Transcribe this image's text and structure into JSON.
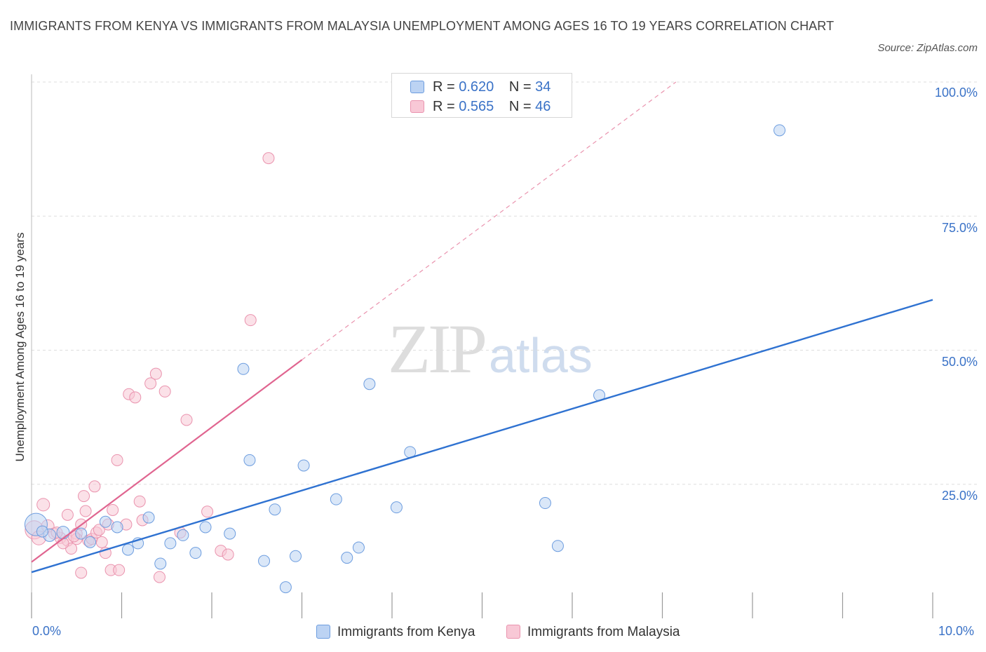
{
  "header": {
    "title": "IMMIGRANTS FROM KENYA VS IMMIGRANTS FROM MALAYSIA UNEMPLOYMENT AMONG AGES 16 TO 19 YEARS CORRELATION CHART",
    "source": "Source: ZipAtlas.com"
  },
  "watermark": {
    "zip": "ZIP",
    "atlas": "atlas"
  },
  "stats": {
    "kenya": {
      "r_label": "R =",
      "r": "0.620",
      "n_label": "N =",
      "n": "34"
    },
    "malaysia": {
      "r_label": "R =",
      "r": "0.565",
      "n_label": "N =",
      "n": "46"
    }
  },
  "colors": {
    "kenya_fill": "#bcd3f3",
    "kenya_stroke": "#6d9ddf",
    "kenya_line": "#2f72d1",
    "malaysia_fill": "#f8c8d6",
    "malaysia_stroke": "#ea93ae",
    "malaysia_line": "#e06590",
    "grid": "#dddddd",
    "tick_text": "#3a72c7"
  },
  "chart_data": {
    "type": "scatter",
    "title": "IMMIGRANTS FROM KENYA VS IMMIGRANTS FROM MALAYSIA UNEMPLOYMENT AMONG AGES 16 TO 19 YEARS CORRELATION CHART",
    "xlabel": "",
    "ylabel": "Unemployment Among Ages 16 to 19 years",
    "xlim": [
      0,
      10
    ],
    "ylim": [
      0,
      100
    ],
    "x_tick_labels": [
      "0.0%",
      "10.0%"
    ],
    "y_ticks": [
      25,
      50,
      75,
      100
    ],
    "y_tick_labels": [
      "25.0%",
      "50.0%",
      "75.0%",
      "100.0%"
    ],
    "grid": true,
    "legend_position": "bottom-center",
    "series": [
      {
        "name": "Immigrants from Kenya",
        "color": "#6d9ddf",
        "trend": {
          "x": [
            0,
            10
          ],
          "y": [
            8.6,
            59.4
          ],
          "style": "solid"
        },
        "points": [
          {
            "x": 0.05,
            "y": 17.5,
            "s": 16
          },
          {
            "x": 0.2,
            "y": 15.5,
            "s": 9
          },
          {
            "x": 0.35,
            "y": 16.0,
            "s": 9
          },
          {
            "x": 0.55,
            "y": 15.8,
            "s": 8
          },
          {
            "x": 0.65,
            "y": 14.2,
            "s": 8
          },
          {
            "x": 0.82,
            "y": 18.0,
            "s": 8
          },
          {
            "x": 0.95,
            "y": 17.0,
            "s": 8
          },
          {
            "x": 1.07,
            "y": 12.8,
            "s": 8
          },
          {
            "x": 1.18,
            "y": 14.0,
            "s": 8
          },
          {
            "x": 1.3,
            "y": 18.8,
            "s": 8
          },
          {
            "x": 1.43,
            "y": 10.2,
            "s": 8
          },
          {
            "x": 1.54,
            "y": 14.0,
            "s": 8
          },
          {
            "x": 1.68,
            "y": 15.5,
            "s": 8
          },
          {
            "x": 1.82,
            "y": 12.2,
            "s": 8
          },
          {
            "x": 1.93,
            "y": 17.0,
            "s": 8
          },
          {
            "x": 2.2,
            "y": 15.8,
            "s": 8
          },
          {
            "x": 2.35,
            "y": 46.5,
            "s": 8
          },
          {
            "x": 2.42,
            "y": 29.5,
            "s": 8
          },
          {
            "x": 2.58,
            "y": 10.7,
            "s": 8
          },
          {
            "x": 2.7,
            "y": 20.3,
            "s": 8
          },
          {
            "x": 2.82,
            "y": 5.8,
            "s": 8
          },
          {
            "x": 2.93,
            "y": 11.6,
            "s": 8
          },
          {
            "x": 3.02,
            "y": 28.5,
            "s": 8
          },
          {
            "x": 3.38,
            "y": 22.2,
            "s": 8
          },
          {
            "x": 3.5,
            "y": 11.3,
            "s": 8
          },
          {
            "x": 3.63,
            "y": 13.2,
            "s": 8
          },
          {
            "x": 3.75,
            "y": 43.7,
            "s": 8
          },
          {
            "x": 4.05,
            "y": 20.7,
            "s": 8
          },
          {
            "x": 4.2,
            "y": 31.0,
            "s": 8
          },
          {
            "x": 5.7,
            "y": 21.5,
            "s": 8
          },
          {
            "x": 5.84,
            "y": 13.5,
            "s": 8
          },
          {
            "x": 6.3,
            "y": 41.6,
            "s": 8
          },
          {
            "x": 8.3,
            "y": 91.0,
            "s": 8
          },
          {
            "x": 0.12,
            "y": 16.2,
            "s": 8
          }
        ]
      },
      {
        "name": "Immigrants from Malaysia",
        "color": "#ea93ae",
        "trend": {
          "x": [
            0,
            3.0
          ],
          "y": [
            10.5,
            48.2
          ],
          "style": "solid",
          "extension": {
            "x": [
              3.0,
              7.15
            ],
            "y": [
              48.2,
              100
            ],
            "style": "dashed"
          }
        },
        "points": [
          {
            "x": 0.03,
            "y": 16.5,
            "s": 13
          },
          {
            "x": 0.08,
            "y": 15.0,
            "s": 10
          },
          {
            "x": 0.13,
            "y": 21.2,
            "s": 9
          },
          {
            "x": 0.18,
            "y": 17.2,
            "s": 9
          },
          {
            "x": 0.25,
            "y": 15.8,
            "s": 8
          },
          {
            "x": 0.32,
            "y": 15.0,
            "s": 8
          },
          {
            "x": 0.4,
            "y": 14.5,
            "s": 8
          },
          {
            "x": 0.4,
            "y": 19.3,
            "s": 8
          },
          {
            "x": 0.44,
            "y": 13.0,
            "s": 8
          },
          {
            "x": 0.5,
            "y": 15.8,
            "s": 8
          },
          {
            "x": 0.5,
            "y": 14.8,
            "s": 8
          },
          {
            "x": 0.55,
            "y": 17.5,
            "s": 8
          },
          {
            "x": 0.55,
            "y": 8.5,
            "s": 8
          },
          {
            "x": 0.58,
            "y": 22.8,
            "s": 8
          },
          {
            "x": 0.6,
            "y": 20.0,
            "s": 8
          },
          {
            "x": 0.63,
            "y": 14.5,
            "s": 8
          },
          {
            "x": 0.67,
            "y": 14.8,
            "s": 8
          },
          {
            "x": 0.7,
            "y": 24.6,
            "s": 8
          },
          {
            "x": 0.72,
            "y": 16.0,
            "s": 8
          },
          {
            "x": 0.75,
            "y": 16.5,
            "s": 8
          },
          {
            "x": 0.82,
            "y": 12.2,
            "s": 8
          },
          {
            "x": 0.85,
            "y": 17.5,
            "s": 8
          },
          {
            "x": 0.88,
            "y": 9.0,
            "s": 8
          },
          {
            "x": 0.9,
            "y": 20.2,
            "s": 8
          },
          {
            "x": 0.95,
            "y": 29.5,
            "s": 8
          },
          {
            "x": 0.97,
            "y": 9.0,
            "s": 8
          },
          {
            "x": 1.05,
            "y": 17.5,
            "s": 8
          },
          {
            "x": 1.08,
            "y": 41.8,
            "s": 8
          },
          {
            "x": 1.15,
            "y": 41.2,
            "s": 8
          },
          {
            "x": 1.2,
            "y": 21.8,
            "s": 8
          },
          {
            "x": 1.23,
            "y": 18.3,
            "s": 8
          },
          {
            "x": 1.32,
            "y": 43.8,
            "s": 8
          },
          {
            "x": 1.38,
            "y": 45.6,
            "s": 8
          },
          {
            "x": 1.42,
            "y": 7.7,
            "s": 8
          },
          {
            "x": 1.48,
            "y": 42.3,
            "s": 8
          },
          {
            "x": 1.65,
            "y": 16.0,
            "s": 8
          },
          {
            "x": 1.72,
            "y": 37.0,
            "s": 8
          },
          {
            "x": 1.95,
            "y": 19.9,
            "s": 8
          },
          {
            "x": 2.1,
            "y": 12.6,
            "s": 8
          },
          {
            "x": 2.18,
            "y": 11.9,
            "s": 8
          },
          {
            "x": 2.43,
            "y": 55.6,
            "s": 8
          },
          {
            "x": 2.63,
            "y": 85.8,
            "s": 8
          },
          {
            "x": 0.28,
            "y": 16.0,
            "s": 8
          },
          {
            "x": 0.47,
            "y": 15.3,
            "s": 8
          },
          {
            "x": 0.35,
            "y": 14.0,
            "s": 8
          },
          {
            "x": 0.78,
            "y": 14.2,
            "s": 8
          }
        ]
      }
    ]
  },
  "legend": {
    "kenya": "Immigrants from Kenya",
    "malaysia": "Immigrants from Malaysia"
  }
}
